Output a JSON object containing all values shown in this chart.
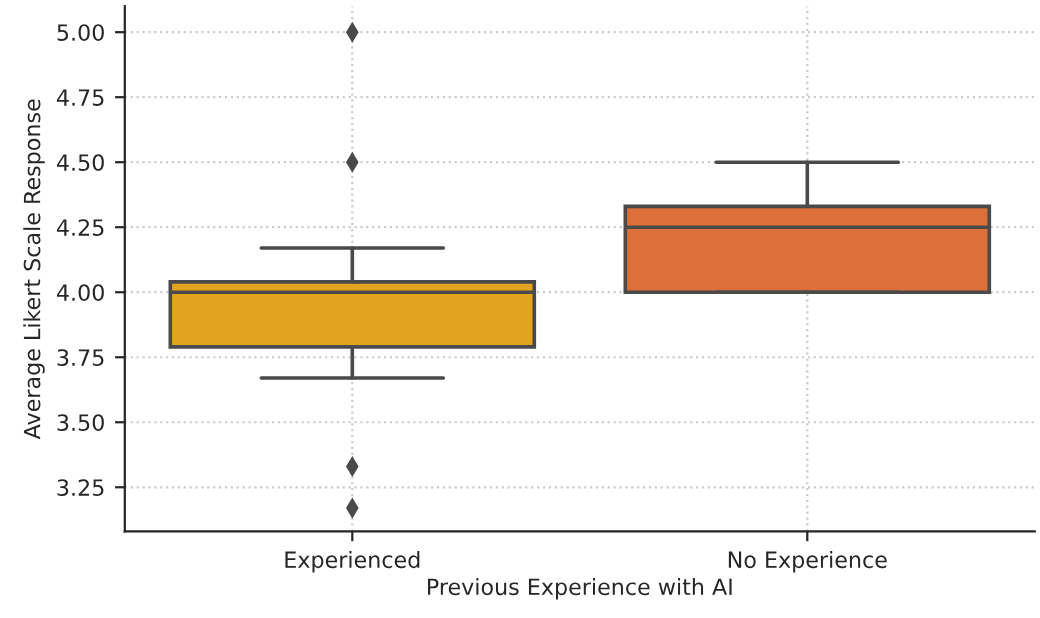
{
  "chart_data": {
    "type": "box",
    "xlabel": "Previous Experience with AI",
    "ylabel": "Average Likert Scale Response",
    "categories": [
      "Experienced",
      "No Experience"
    ],
    "colors": [
      "#e2a41f",
      "#dc6f3a"
    ],
    "boxes": [
      {
        "low": 3.67,
        "q1": 3.79,
        "median": 4.0,
        "q3": 4.04,
        "high": 4.17,
        "outliers": [
          5.0,
          4.5,
          3.33,
          3.17
        ]
      },
      {
        "low": 4.0,
        "q1": 4.0,
        "median": 4.25,
        "q3": 4.33,
        "high": 4.5
      }
    ],
    "ylim": [
      3.08,
      5.1
    ],
    "yticks": [
      {
        "value": 3.25,
        "label": "3.25"
      },
      {
        "value": 3.5,
        "label": "3.50"
      },
      {
        "value": 3.75,
        "label": "3.75"
      },
      {
        "value": 4.0,
        "label": "4.00"
      },
      {
        "value": 4.25,
        "label": "4.25"
      },
      {
        "value": 4.5,
        "label": "4.50"
      },
      {
        "value": 4.75,
        "label": "4.75"
      },
      {
        "value": 5.0,
        "label": "5.00"
      }
    ],
    "grid": true
  }
}
